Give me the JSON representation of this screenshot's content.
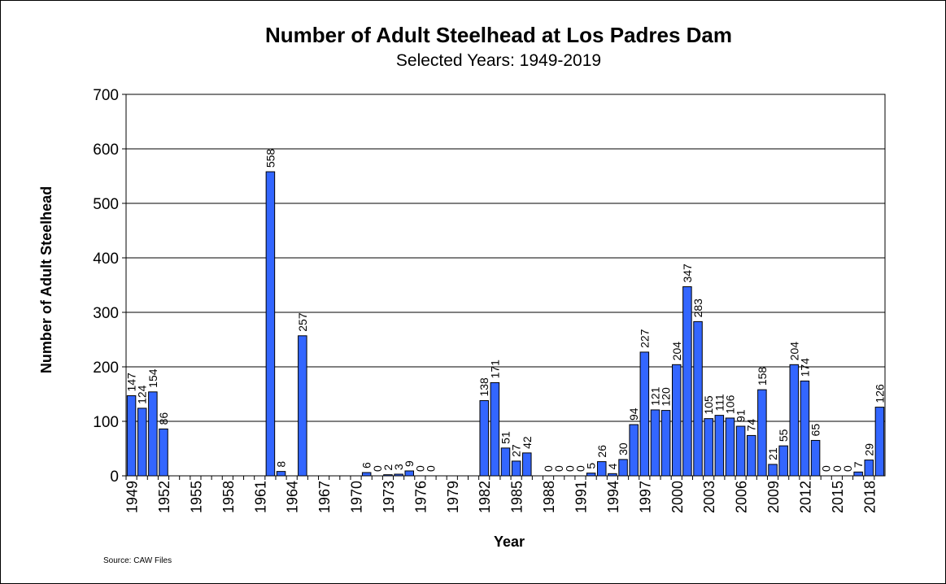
{
  "chart_data": {
    "type": "bar",
    "title": "Number of Adult Steelhead at Los Padres Dam",
    "subtitle": "Selected Years: 1949-2019",
    "x_label": "Year",
    "y_label": "Number of Adult Steelhead",
    "source": "Source:  CAW Files",
    "categories": [
      "1949",
      null,
      null,
      "1952",
      null,
      null,
      "1955",
      null,
      null,
      "1958",
      null,
      null,
      "1961",
      null,
      null,
      "1964",
      null,
      null,
      "1967",
      null,
      null,
      "1970",
      null,
      null,
      "1973",
      null,
      null,
      "1976",
      null,
      null,
      "1979",
      null,
      null,
      "1982",
      null,
      null,
      "1985",
      null,
      null,
      "1988",
      null,
      null,
      "1991",
      null,
      null,
      "1994",
      null,
      null,
      "1997",
      null,
      null,
      "2000",
      null,
      null,
      "2003",
      null,
      null,
      "2006",
      null,
      null,
      "2009",
      null,
      null,
      "2012",
      null,
      null,
      "2015",
      null,
      null,
      "2018",
      null
    ],
    "values": [
      147,
      124,
      154,
      86,
      null,
      null,
      null,
      null,
      null,
      null,
      null,
      null,
      null,
      558,
      8,
      null,
      257,
      null,
      null,
      null,
      null,
      null,
      6,
      0,
      2,
      3,
      9,
      0,
      0,
      null,
      null,
      null,
      null,
      138,
      171,
      51,
      27,
      42,
      null,
      0,
      0,
      0,
      0,
      5,
      26,
      4,
      30,
      94,
      227,
      121,
      120,
      204,
      347,
      283,
      105,
      111,
      106,
      91,
      74,
      158,
      21,
      55,
      204,
      174,
      65,
      0,
      0,
      0,
      7,
      29,
      126
    ],
    "color": "#3366ff",
    "ylim": [
      0,
      700
    ],
    "yticks": [
      0,
      100,
      200,
      300,
      400,
      500,
      600,
      700
    ],
    "grid": true
  }
}
